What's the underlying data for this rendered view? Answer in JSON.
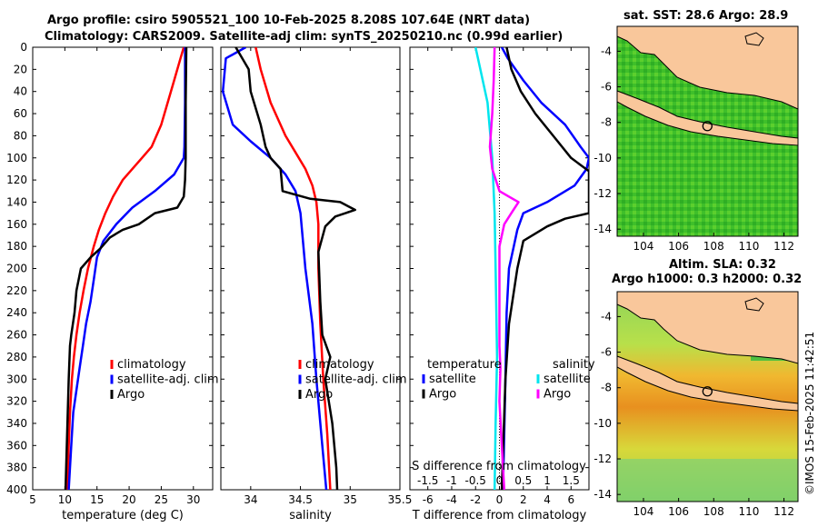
{
  "titles": {
    "main_line1": "Argo profile: csiro 5905521_100 10-Feb-2025 8.208S 107.64E (NRT data)",
    "main_line2": "Climatology: CARS2009. Satellite-adj clim: synTS_20250210.nc (0.99d earlier)",
    "sst": "sat. SST: 28.6 Argo: 28.9",
    "sla_line1": "Altim. SLA: 0.32",
    "sla_line2": "Argo h1000: 0.3 h2000: 0.32"
  },
  "credit": "©IMOS 15-Feb-2025 11:42:51",
  "colors": {
    "climatology": "#ff0000",
    "satellite": "#0000ff",
    "argo": "#000000",
    "sat_salinity": "#00e5ee",
    "argo_salinity": "#ff00ff",
    "land": "#f9c79b"
  },
  "chart_data": [
    {
      "type": "line",
      "panel": "temperature",
      "xlabel": "temperature (deg C)",
      "ylabel": "",
      "xlim": [
        5,
        33
      ],
      "ylim": [
        400,
        0
      ],
      "xticks": [
        5,
        10,
        15,
        20,
        25,
        30
      ],
      "yticks": [
        0,
        20,
        40,
        60,
        80,
        100,
        120,
        140,
        160,
        180,
        200,
        220,
        240,
        260,
        280,
        300,
        320,
        340,
        360,
        380,
        400
      ],
      "legend": [
        "climatology",
        "satellite-adj. clim",
        "Argo"
      ],
      "series": [
        {
          "name": "climatology",
          "color": "#ff0000",
          "points": [
            [
              28.5,
              0
            ],
            [
              28.0,
              10
            ],
            [
              27.0,
              30
            ],
            [
              26.0,
              50
            ],
            [
              25.0,
              70
            ],
            [
              23.5,
              90
            ],
            [
              22.0,
              100
            ],
            [
              20.5,
              110
            ],
            [
              19.0,
              120
            ],
            [
              17.5,
              135
            ],
            [
              16.3,
              150
            ],
            [
              15.3,
              165
            ],
            [
              14.5,
              180
            ],
            [
              13.6,
              200
            ],
            [
              12.9,
              220
            ],
            [
              12.3,
              240
            ],
            [
              11.8,
              260
            ],
            [
              11.4,
              280
            ],
            [
              11.1,
              300
            ],
            [
              10.8,
              330
            ],
            [
              10.6,
              360
            ],
            [
              10.4,
              400
            ]
          ]
        },
        {
          "name": "satellite-adj. clim",
          "color": "#0000ff",
          "points": [
            [
              28.7,
              0
            ],
            [
              28.7,
              50
            ],
            [
              28.6,
              90
            ],
            [
              28.5,
              100
            ],
            [
              27.0,
              115
            ],
            [
              24.0,
              130
            ],
            [
              20.5,
              145
            ],
            [
              18.0,
              160
            ],
            [
              16.0,
              175
            ],
            [
              15.0,
              190
            ],
            [
              14.5,
              210
            ],
            [
              14.0,
              230
            ],
            [
              13.3,
              250
            ],
            [
              12.8,
              270
            ],
            [
              12.3,
              290
            ],
            [
              11.8,
              310
            ],
            [
              11.3,
              330
            ],
            [
              11.0,
              360
            ],
            [
              10.6,
              400
            ]
          ]
        },
        {
          "name": "Argo",
          "color": "#000000",
          "points": [
            [
              28.9,
              0
            ],
            [
              28.8,
              50
            ],
            [
              28.8,
              100
            ],
            [
              28.7,
              120
            ],
            [
              28.5,
              135
            ],
            [
              27.5,
              145
            ],
            [
              24.0,
              150
            ],
            [
              21.5,
              160
            ],
            [
              19.0,
              165
            ],
            [
              17.0,
              172
            ],
            [
              15.5,
              182
            ],
            [
              14.0,
              190
            ],
            [
              12.5,
              200
            ],
            [
              11.8,
              220
            ],
            [
              11.5,
              240
            ],
            [
              11.0,
              260
            ],
            [
              10.8,
              270
            ],
            [
              10.6,
              300
            ],
            [
              10.3,
              360
            ],
            [
              10.1,
              400
            ]
          ]
        }
      ]
    },
    {
      "type": "line",
      "panel": "salinity",
      "xlabel": "salinity",
      "ylabel": "",
      "xlim": [
        33.7,
        35.5
      ],
      "ylim": [
        400,
        0
      ],
      "xticks": [
        34,
        34.5,
        35,
        35.5
      ],
      "xticklabels": [
        "34",
        "34.5",
        "35",
        "35.5"
      ],
      "legend": [
        "climatology",
        "satellite-adj. clim",
        "Argo"
      ],
      "series": [
        {
          "name": "climatology",
          "color": "#ff0000",
          "points": [
            [
              34.05,
              0
            ],
            [
              34.1,
              20
            ],
            [
              34.2,
              50
            ],
            [
              34.35,
              80
            ],
            [
              34.45,
              95
            ],
            [
              34.55,
              110
            ],
            [
              34.62,
              125
            ],
            [
              34.66,
              140
            ],
            [
              34.68,
              160
            ],
            [
              34.68,
              200
            ],
            [
              34.7,
              250
            ],
            [
              34.73,
              300
            ],
            [
              34.77,
              350
            ],
            [
              34.8,
              400
            ]
          ]
        },
        {
          "name": "satellite-adj. clim",
          "color": "#0000ff",
          "points": [
            [
              33.95,
              0
            ],
            [
              33.75,
              10
            ],
            [
              33.72,
              40
            ],
            [
              33.82,
              70
            ],
            [
              34.0,
              85
            ],
            [
              34.2,
              100
            ],
            [
              34.35,
              115
            ],
            [
              34.45,
              130
            ],
            [
              34.5,
              150
            ],
            [
              34.55,
              200
            ],
            [
              34.62,
              250
            ],
            [
              34.66,
              300
            ],
            [
              34.72,
              360
            ],
            [
              34.76,
              400
            ]
          ]
        },
        {
          "name": "Argo",
          "color": "#000000",
          "points": [
            [
              33.85,
              0
            ],
            [
              33.98,
              20
            ],
            [
              34.0,
              40
            ],
            [
              34.1,
              70
            ],
            [
              34.15,
              90
            ],
            [
              34.2,
              100
            ],
            [
              34.3,
              110
            ],
            [
              34.32,
              130
            ],
            [
              34.6,
              137
            ],
            [
              34.9,
              140
            ],
            [
              35.05,
              147
            ],
            [
              34.85,
              153
            ],
            [
              34.75,
              162
            ],
            [
              34.68,
              185
            ],
            [
              34.7,
              230
            ],
            [
              34.72,
              260
            ],
            [
              34.8,
              280
            ],
            [
              34.75,
              300
            ],
            [
              34.82,
              340
            ],
            [
              34.86,
              380
            ],
            [
              34.87,
              400
            ]
          ]
        }
      ]
    },
    {
      "type": "line",
      "panel": "difference",
      "xlabel": "T difference from climatology",
      "x2label": "S difference from climatology",
      "xlim": [
        -7.5,
        7.5
      ],
      "ylim": [
        400,
        0
      ],
      "xticks": [
        -6,
        -4,
        -2,
        0,
        2,
        4,
        6
      ],
      "x2lim": [
        -1.875,
        1.875
      ],
      "x2ticks": [
        -1.5,
        -1,
        -0.5,
        0,
        0.5,
        1,
        1.5
      ],
      "x2ticklabels": [
        "-1.5",
        "-1",
        "-0.5",
        "0",
        "0.5",
        "1",
        "1.5"
      ],
      "legend": {
        "temperature_heading": "temperature",
        "salinity_heading": "salinity",
        "temperature": [
          "satellite",
          "Argo"
        ],
        "salinity": [
          "satellite",
          "Argo"
        ]
      },
      "series": [
        {
          "name": "temperature satellite",
          "color": "#0000ff",
          "points": [
            [
              0.2,
              0
            ],
            [
              0.7,
              10
            ],
            [
              2.0,
              30
            ],
            [
              3.5,
              50
            ],
            [
              5.5,
              70
            ],
            [
              6.8,
              90
            ],
            [
              7.5,
              100
            ],
            [
              7.3,
              110
            ],
            [
              6.3,
              125
            ],
            [
              4.0,
              140
            ],
            [
              2.0,
              150
            ],
            [
              1.5,
              165
            ],
            [
              1.2,
              180
            ],
            [
              0.8,
              200
            ],
            [
              0.6,
              240
            ],
            [
              0.5,
              300
            ],
            [
              0.3,
              400
            ]
          ]
        },
        {
          "name": "temperature Argo",
          "color": "#000000",
          "points": [
            [
              0.6,
              0
            ],
            [
              1.0,
              20
            ],
            [
              1.8,
              40
            ],
            [
              3.0,
              60
            ],
            [
              4.5,
              80
            ],
            [
              6.0,
              100
            ],
            [
              7.5,
              112
            ],
            [
              7.5,
              150
            ],
            [
              5.5,
              155
            ],
            [
              4.0,
              162
            ],
            [
              2.0,
              175
            ],
            [
              1.5,
              200
            ],
            [
              0.8,
              250
            ],
            [
              0.5,
              300
            ],
            [
              0.2,
              400
            ]
          ]
        },
        {
          "name": "salinity satellite",
          "color": "#00e5ee",
          "points": [
            [
              -0.5,
              0
            ],
            [
              -0.4,
              20
            ],
            [
              -0.25,
              50
            ],
            [
              -0.15,
              100
            ],
            [
              -0.1,
              150
            ],
            [
              -0.08,
              200
            ],
            [
              -0.05,
              280
            ],
            [
              -0.08,
              340
            ],
            [
              -0.1,
              400
            ]
          ]
        },
        {
          "name": "salinity Argo",
          "color": "#ff00ff",
          "points": [
            [
              -0.1,
              0
            ],
            [
              -0.12,
              30
            ],
            [
              -0.15,
              60
            ],
            [
              -0.2,
              90
            ],
            [
              -0.15,
              110
            ],
            [
              0.0,
              130
            ],
            [
              0.2,
              135
            ],
            [
              0.4,
              140
            ],
            [
              0.25,
              150
            ],
            [
              0.1,
              160
            ],
            [
              0.0,
              180
            ],
            [
              0.0,
              220
            ],
            [
              0.0,
              270
            ],
            [
              0.02,
              290
            ],
            [
              0.0,
              320
            ],
            [
              0.05,
              360
            ],
            [
              0.1,
              400
            ]
          ]
        }
      ]
    },
    {
      "type": "heatmap",
      "panel": "sst_map",
      "title": "sat. SST: 28.6 Argo: 28.9",
      "xlim": [
        102.5,
        112.8
      ],
      "ylim": [
        -14.4,
        -2.6
      ],
      "xticks": [
        104,
        106,
        108,
        110,
        112
      ],
      "yticks": [
        -4,
        -6,
        -8,
        -10,
        -12,
        -14
      ],
      "marker": {
        "lon": 107.64,
        "lat": -8.208
      }
    },
    {
      "type": "heatmap",
      "panel": "sla_map",
      "title": "Altim. SLA: 0.32 / Argo h1000: 0.3 h2000: 0.32",
      "xlim": [
        102.5,
        112.8
      ],
      "ylim": [
        -14.4,
        -2.6
      ],
      "xticks": [
        104,
        106,
        108,
        110,
        112
      ],
      "yticks": [
        -4,
        -6,
        -8,
        -10,
        -12,
        -14
      ],
      "marker": {
        "lon": 107.64,
        "lat": -8.208
      }
    }
  ]
}
